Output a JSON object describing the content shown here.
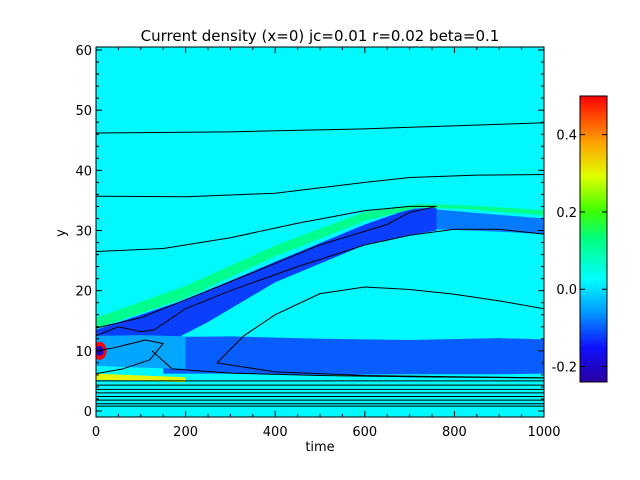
{
  "chart_data": {
    "type": "heatmap",
    "title": "Current density (x=0) jc=0.01 r=0.02 beta=0.1",
    "xlabel": "time",
    "ylabel": "y",
    "xlim": [
      0,
      1000
    ],
    "ylim": [
      -1,
      60.5
    ],
    "xticks": [
      0,
      200,
      400,
      600,
      800,
      1000
    ],
    "yticks": [
      0,
      10,
      20,
      30,
      40,
      50,
      60
    ],
    "colorbar": {
      "colormap": "rainbow",
      "range": [
        -0.24,
        0.5
      ],
      "ticks": [
        -0.2,
        0.0,
        0.2,
        0.4
      ],
      "tick_labels": [
        "-0.2",
        "0.0",
        "0.2",
        "0.4"
      ]
    },
    "background_value": 0.02,
    "bands": [
      {
        "value": -0.12,
        "upper": [
          [
            0,
            13.5
          ],
          [
            200,
            18.5
          ],
          [
            400,
            24.8
          ],
          [
            600,
            31.0
          ],
          [
            700,
            33.6
          ],
          [
            760,
            33.8
          ]
        ],
        "lower": [
          [
            0,
            7.5
          ],
          [
            50,
            8.0
          ],
          [
            120,
            9.8
          ],
          [
            250,
            14.8
          ],
          [
            400,
            21.4
          ],
          [
            600,
            27.6
          ],
          [
            700,
            29.2
          ],
          [
            760,
            30.0
          ]
        ]
      },
      {
        "value": -0.1,
        "upper": [
          [
            150,
            12.3
          ],
          [
            300,
            12.4
          ],
          [
            500,
            12.0
          ],
          [
            700,
            11.8
          ],
          [
            900,
            12.1
          ],
          [
            1000,
            11.9
          ]
        ],
        "lower": [
          [
            150,
            6.2
          ],
          [
            300,
            6.2
          ],
          [
            500,
            6.0
          ],
          [
            700,
            6.1
          ],
          [
            900,
            6.1
          ],
          [
            1000,
            6.2
          ]
        ]
      },
      {
        "value": -0.08,
        "upper": [
          [
            760,
            33.5
          ],
          [
            900,
            32.6
          ],
          [
            1000,
            32.0
          ]
        ],
        "lower": [
          [
            760,
            30.2
          ],
          [
            900,
            29.8
          ],
          [
            1000,
            29.4
          ]
        ]
      },
      {
        "value": -0.05,
        "upper": [
          [
            0,
            12.5
          ],
          [
            100,
            12.6
          ],
          [
            200,
            12.4
          ]
        ],
        "lower": [
          [
            0,
            7.5
          ],
          [
            100,
            7.2
          ],
          [
            200,
            7.0
          ]
        ]
      },
      {
        "value": 0.12,
        "upper": [
          [
            0,
            15.5
          ],
          [
            200,
            20.8
          ],
          [
            400,
            27.5
          ],
          [
            600,
            33.1
          ],
          [
            720,
            34.4
          ],
          [
            820,
            34.2
          ],
          [
            1000,
            33.4
          ]
        ],
        "lower": [
          [
            0,
            13.7
          ],
          [
            200,
            18.8
          ],
          [
            400,
            25.7
          ],
          [
            600,
            31.6
          ],
          [
            720,
            33.8
          ],
          [
            820,
            33.6
          ],
          [
            1000,
            32.5
          ]
        ]
      },
      {
        "value": 0.3,
        "upper": [
          [
            0,
            6.2
          ],
          [
            100,
            5.9
          ],
          [
            200,
            5.6
          ]
        ],
        "lower": [
          [
            0,
            5.2
          ],
          [
            100,
            5.0
          ],
          [
            200,
            4.8
          ]
        ]
      }
    ],
    "spots": [
      {
        "x": 8,
        "y": 10,
        "value": 0.5
      },
      {
        "x": 8,
        "y": 10,
        "value": -0.2
      }
    ],
    "contours": [
      [
        [
          0,
          1.8
        ],
        [
          1000,
          1.8
        ]
      ],
      [
        [
          0,
          1.2
        ],
        [
          1000,
          1.2
        ]
      ],
      [
        [
          0,
          0.8
        ],
        [
          1000,
          0.8
        ]
      ],
      [
        [
          0,
          2.4
        ],
        [
          1000,
          2.4
        ]
      ],
      [
        [
          0,
          3.0
        ],
        [
          1000,
          3.0
        ]
      ],
      [
        [
          0,
          3.6
        ],
        [
          1000,
          3.6
        ]
      ],
      [
        [
          0,
          4.3
        ],
        [
          1000,
          4.3
        ]
      ],
      [
        [
          0,
          5.0
        ],
        [
          1000,
          5.0
        ]
      ],
      [
        [
          0,
          46.2
        ],
        [
          300,
          46.4
        ],
        [
          600,
          46.9
        ],
        [
          1000,
          47.9
        ]
      ],
      [
        [
          0,
          35.7
        ],
        [
          200,
          35.6
        ],
        [
          400,
          36.2
        ],
        [
          600,
          38.0
        ],
        [
          700,
          38.8
        ],
        [
          850,
          39.2
        ],
        [
          1000,
          39.3
        ]
      ],
      [
        [
          0,
          26.5
        ],
        [
          150,
          27.0
        ],
        [
          300,
          28.8
        ],
        [
          450,
          31.2
        ],
        [
          600,
          33.3
        ],
        [
          700,
          34.0
        ],
        [
          760,
          34.0
        ]
      ],
      [
        [
          0,
          13.8
        ],
        [
          100,
          15.5
        ],
        [
          200,
          18.5
        ],
        [
          350,
          23.0
        ],
        [
          500,
          27.6
        ],
        [
          650,
          31.0
        ],
        [
          700,
          33.0
        ],
        [
          760,
          34.0
        ]
      ],
      [
        [
          0,
          12.5
        ],
        [
          50,
          14.0
        ],
        [
          100,
          13.2
        ],
        [
          130,
          13.5
        ],
        [
          200,
          17.0
        ],
        [
          300,
          20.0
        ],
        [
          450,
          24.0
        ],
        [
          600,
          27.6
        ],
        [
          700,
          29.2
        ],
        [
          800,
          30.2
        ],
        [
          900,
          30.2
        ],
        [
          1000,
          29.4
        ]
      ],
      [
        [
          0,
          10
        ],
        [
          40,
          10.5
        ],
        [
          110,
          11.8
        ],
        [
          150,
          11.2
        ],
        [
          120,
          8.5
        ],
        [
          60,
          7.0
        ],
        [
          0,
          6.2
        ]
      ],
      [
        [
          270,
          8.0
        ],
        [
          330,
          12.5
        ],
        [
          400,
          16.0
        ],
        [
          500,
          19.5
        ],
        [
          600,
          20.6
        ],
        [
          700,
          20.2
        ],
        [
          800,
          19.4
        ],
        [
          900,
          18.3
        ],
        [
          1000,
          17.0
        ]
      ],
      [
        [
          270,
          8.0
        ],
        [
          400,
          6.5
        ],
        [
          600,
          5.9
        ],
        [
          800,
          5.7
        ],
        [
          1000,
          5.5
        ]
      ],
      [
        [
          125,
          10.0
        ],
        [
          170,
          7.0
        ],
        [
          300,
          6.3
        ],
        [
          500,
          5.9
        ],
        [
          700,
          5.7
        ],
        [
          1000,
          5.5
        ]
      ]
    ]
  }
}
